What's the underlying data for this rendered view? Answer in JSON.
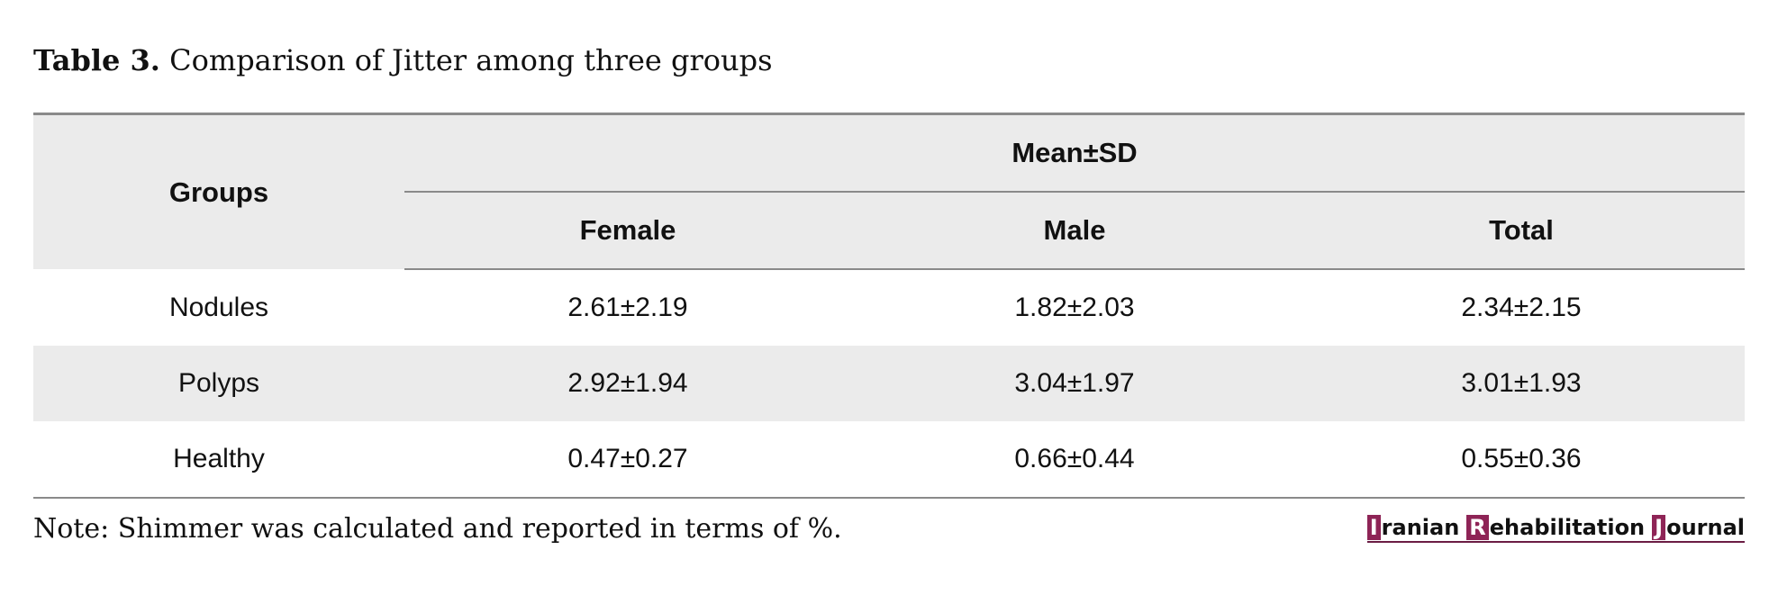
{
  "caption": {
    "label": "Table 3.",
    "title": "Comparison of Jitter among three groups"
  },
  "table": {
    "group_header": "Groups",
    "span_header": "Mean±SD",
    "columns": [
      "Female",
      "Male",
      "Total"
    ],
    "rows": [
      {
        "group": "Nodules",
        "female": "2.61±2.19",
        "male": "1.82±2.03",
        "total": "2.34±2.15"
      },
      {
        "group": "Polyps",
        "female": "2.92±1.94",
        "male": "3.04±1.97",
        "total": "3.01±1.93"
      },
      {
        "group": "Healthy",
        "female": "0.47±0.27",
        "male": "0.66±0.44",
        "total": "0.55±0.36"
      }
    ]
  },
  "note": "Note: Shimmer was calculated and reported in terms of %.",
  "journal": {
    "words": [
      {
        "initial": "I",
        "rest": "ranian"
      },
      {
        "initial": "R",
        "rest": "ehabilitation"
      },
      {
        "initial": "J",
        "rest": "ournal"
      }
    ],
    "accent_color": "#8e2456"
  }
}
